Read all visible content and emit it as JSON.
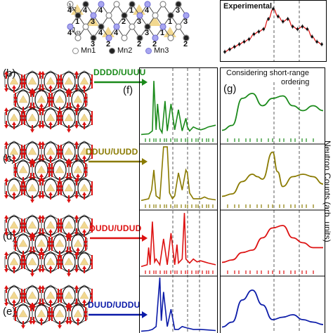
{
  "panels": {
    "b": "(b)",
    "c": "(c)",
    "d": "(d)",
    "e": "(e)",
    "f": "(f)",
    "g": "(g)"
  },
  "top_structure": {
    "bond_labels": [
      "J",
      "d2",
      "J",
      "d3"
    ],
    "site_numbers": [
      "1",
      "4",
      "3",
      "4",
      "2",
      "1",
      "2",
      "3",
      "1",
      "3",
      "2",
      "4",
      "3",
      "4",
      "2",
      "4",
      "3",
      "4",
      "2",
      "1",
      "3",
      "4"
    ],
    "legend": [
      "Mn1",
      "Mn2",
      "Mn3"
    ]
  },
  "experimental_label": "Experimental",
  "configs": [
    {
      "label": "DDDD/UUUU",
      "color": "#1a8a1a"
    },
    {
      "label": "DDUU/UUDD",
      "color": "#8a7a00"
    },
    {
      "label": "DUDU/UDUD",
      "color": "#dd1111"
    },
    {
      "label": "DUUD/UDDU",
      "color": "#0a1aa8"
    }
  ],
  "g_title_line1": "Considering short-range",
  "g_title_line2": "ordering",
  "y_axis_title": "Neutron Counts (arb. units)",
  "colors": {
    "green": "#1a8a1a",
    "olive": "#8a7a00",
    "red": "#dd1111",
    "blue": "#0a1aa8",
    "lattice_red": "#dd1111",
    "lattice_gold": "#f2d890"
  },
  "chart_data": [
    {
      "type": "line",
      "panel": "f",
      "series": [
        {
          "name": "DDDD/UUUU",
          "x": [
            0,
            10,
            15,
            17,
            20,
            22,
            25,
            28,
            32,
            35,
            40,
            45,
            50,
            55,
            60,
            62,
            65,
            70,
            75,
            80,
            85,
            90,
            100
          ],
          "y": [
            0.02,
            0.03,
            0.08,
            0.95,
            0.1,
            0.55,
            0.12,
            0.05,
            0.6,
            0.08,
            0.55,
            0.1,
            0.45,
            0.08,
            0.3,
            0.15,
            0.08,
            0.15,
            0.12,
            0.1,
            0.12,
            0.15,
            0.18
          ]
        },
        {
          "name": "DDUU/UUDD",
          "x": [
            0,
            10,
            14,
            17,
            20,
            25,
            30,
            35,
            38,
            42,
            45,
            50,
            55,
            60,
            62,
            65,
            70,
            75,
            80,
            85,
            90,
            100
          ],
          "y": [
            0.02,
            0.05,
            0.2,
            0.55,
            0.1,
            0.05,
            0.95,
            0.95,
            0.15,
            0.05,
            0.1,
            0.5,
            0.2,
            0.55,
            0.5,
            0.15,
            0.05,
            0.05,
            0.05,
            0.08,
            0.05,
            0.03
          ]
        },
        {
          "name": "DUDU/UDUD",
          "x": [
            0,
            8,
            10,
            12,
            15,
            18,
            20,
            25,
            30,
            35,
            40,
            45,
            48,
            50,
            55,
            58,
            60,
            65,
            70,
            75,
            80,
            85,
            90,
            100
          ],
          "y": [
            0.02,
            0.05,
            0.35,
            0.05,
            0.8,
            0.1,
            0.15,
            0.05,
            0.5,
            0.05,
            0.6,
            0.05,
            0.4,
            0.08,
            0.15,
            0.95,
            0.15,
            0.08,
            0.15,
            0.1,
            0.12,
            0.1,
            0.08,
            0.05
          ]
        },
        {
          "name": "DUUD/UDDU",
          "x": [
            0,
            10,
            15,
            20,
            25,
            27,
            30,
            35,
            40,
            45,
            50,
            55,
            60,
            70,
            80,
            90,
            100
          ],
          "y": [
            0.02,
            0.03,
            0.05,
            0.1,
            0.95,
            0.2,
            0.7,
            0.1,
            0.4,
            0.05,
            0.05,
            0.1,
            0.08,
            0.05,
            0.05,
            0.04,
            0.03
          ]
        }
      ]
    },
    {
      "type": "line",
      "panel": "g",
      "series": [
        {
          "name": "DDDD/UUUU",
          "x": [
            0,
            10,
            20,
            30,
            40,
            50,
            60,
            70,
            80,
            90,
            100
          ],
          "y": [
            0.05,
            0.15,
            0.7,
            0.8,
            0.55,
            0.7,
            0.75,
            0.55,
            0.45,
            0.55,
            0.45
          ]
        },
        {
          "name": "DDUU/UUDD",
          "x": [
            0,
            10,
            20,
            30,
            35,
            40,
            50,
            55,
            60,
            70,
            80,
            90,
            100
          ],
          "y": [
            0.05,
            0.1,
            0.35,
            0.5,
            0.45,
            0.4,
            0.95,
            0.55,
            0.25,
            0.45,
            0.5,
            0.45,
            0.3
          ]
        },
        {
          "name": "DUDU/UDUD",
          "x": [
            0,
            10,
            20,
            30,
            40,
            50,
            60,
            70,
            80,
            90,
            100
          ],
          "y": [
            0.05,
            0.1,
            0.25,
            0.3,
            0.55,
            0.75,
            0.8,
            0.55,
            0.45,
            0.35,
            0.35
          ]
        },
        {
          "name": "DUUD/UDDU",
          "x": [
            0,
            10,
            20,
            30,
            40,
            50,
            60,
            70,
            80,
            90,
            100
          ],
          "y": [
            0.05,
            0.15,
            0.6,
            0.8,
            0.5,
            0.2,
            0.25,
            0.3,
            0.2,
            0.15,
            0.1
          ]
        }
      ]
    },
    {
      "type": "scatter",
      "panel": "experimental",
      "series": [
        {
          "name": "Experimental",
          "x": [
            0,
            5,
            10,
            15,
            20,
            25,
            30,
            35,
            40,
            45,
            50,
            55,
            60,
            65,
            70,
            75,
            80,
            85,
            90,
            95,
            100
          ],
          "y": [
            0.1,
            0.15,
            0.2,
            0.25,
            0.3,
            0.35,
            0.45,
            0.5,
            0.55,
            0.75,
            0.95,
            0.8,
            0.7,
            0.75,
            0.6,
            0.55,
            0.6,
            0.55,
            0.4,
            0.3,
            0.25
          ]
        }
      ]
    }
  ]
}
